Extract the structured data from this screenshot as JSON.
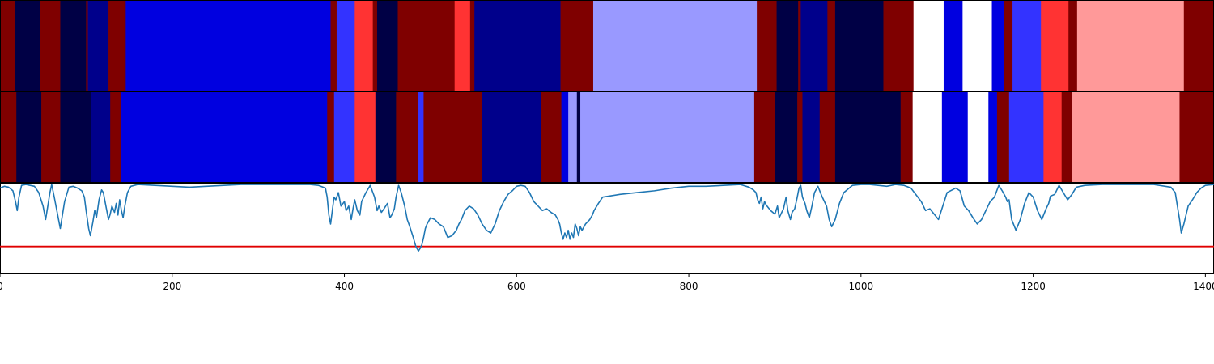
{
  "chart_data": {
    "type": "heatmap",
    "title": "",
    "xlabel": "",
    "ylabel": "",
    "xlim": [
      0,
      1410
    ],
    "xticks": [
      0,
      200,
      400,
      600,
      800,
      1000,
      1200,
      1400
    ],
    "xtick_labels": [
      "0",
      "200",
      "400",
      "600",
      "800",
      "1000",
      "1200",
      "1400"
    ],
    "grid": false,
    "colors": {
      "dark_red": "#7f0000",
      "red": "#ff3333",
      "pink": "#ff9999",
      "navy": "#000045",
      "dark_blue": "#00008b",
      "blue": "#0000e0",
      "mid_blue": "#3333ff",
      "light_blue": "#9999ff",
      "white": "#ffffff",
      "line": "#1f77b4",
      "threshold": "#e00000"
    },
    "rows": [
      {
        "segments": [
          {
            "start": 0,
            "end": 17,
            "color": "dark_red"
          },
          {
            "start": 17,
            "end": 47,
            "color": "navy"
          },
          {
            "start": 47,
            "end": 70,
            "color": "dark_red"
          },
          {
            "start": 70,
            "end": 100,
            "color": "navy"
          },
          {
            "start": 100,
            "end": 102,
            "color": "dark_red"
          },
          {
            "start": 102,
            "end": 126,
            "color": "dark_blue"
          },
          {
            "start": 126,
            "end": 146,
            "color": "dark_red"
          },
          {
            "start": 146,
            "end": 384,
            "color": "blue"
          },
          {
            "start": 384,
            "end": 391,
            "color": "dark_red"
          },
          {
            "start": 391,
            "end": 412,
            "color": "mid_blue"
          },
          {
            "start": 412,
            "end": 433,
            "color": "red"
          },
          {
            "start": 433,
            "end": 438,
            "color": "dark_red"
          },
          {
            "start": 438,
            "end": 462,
            "color": "navy"
          },
          {
            "start": 462,
            "end": 528,
            "color": "dark_red"
          },
          {
            "start": 528,
            "end": 546,
            "color": "red"
          },
          {
            "start": 546,
            "end": 551,
            "color": "dark_red"
          },
          {
            "start": 551,
            "end": 651,
            "color": "dark_blue"
          },
          {
            "start": 651,
            "end": 689,
            "color": "dark_red"
          },
          {
            "start": 689,
            "end": 879,
            "color": "light_blue"
          },
          {
            "start": 879,
            "end": 902,
            "color": "dark_red"
          },
          {
            "start": 902,
            "end": 927,
            "color": "navy"
          },
          {
            "start": 927,
            "end": 930,
            "color": "dark_red"
          },
          {
            "start": 930,
            "end": 961,
            "color": "dark_blue"
          },
          {
            "start": 961,
            "end": 970,
            "color": "dark_red"
          },
          {
            "start": 970,
            "end": 1026,
            "color": "navy"
          },
          {
            "start": 1026,
            "end": 1061,
            "color": "dark_red"
          },
          {
            "start": 1061,
            "end": 1096,
            "color": "white"
          },
          {
            "start": 1096,
            "end": 1118,
            "color": "blue"
          },
          {
            "start": 1118,
            "end": 1152,
            "color": "white"
          },
          {
            "start": 1152,
            "end": 1166,
            "color": "blue"
          },
          {
            "start": 1166,
            "end": 1176,
            "color": "dark_red"
          },
          {
            "start": 1176,
            "end": 1209,
            "color": "mid_blue"
          },
          {
            "start": 1209,
            "end": 1241,
            "color": "red"
          },
          {
            "start": 1241,
            "end": 1251,
            "color": "dark_red"
          },
          {
            "start": 1251,
            "end": 1375,
            "color": "pink"
          },
          {
            "start": 1375,
            "end": 1410,
            "color": "dark_red"
          }
        ]
      },
      {
        "segments": [
          {
            "start": 0,
            "end": 19,
            "color": "dark_red"
          },
          {
            "start": 19,
            "end": 48,
            "color": "navy"
          },
          {
            "start": 48,
            "end": 70,
            "color": "dark_red"
          },
          {
            "start": 70,
            "end": 106,
            "color": "navy"
          },
          {
            "start": 106,
            "end": 128,
            "color": "dark_blue"
          },
          {
            "start": 128,
            "end": 140,
            "color": "dark_red"
          },
          {
            "start": 140,
            "end": 380,
            "color": "blue"
          },
          {
            "start": 380,
            "end": 388,
            "color": "dark_red"
          },
          {
            "start": 388,
            "end": 412,
            "color": "mid_blue"
          },
          {
            "start": 412,
            "end": 436,
            "color": "red"
          },
          {
            "start": 436,
            "end": 460,
            "color": "navy"
          },
          {
            "start": 460,
            "end": 486,
            "color": "dark_red"
          },
          {
            "start": 486,
            "end": 492,
            "color": "mid_blue"
          },
          {
            "start": 492,
            "end": 526,
            "color": "dark_red"
          },
          {
            "start": 526,
            "end": 560,
            "color": "dark_red"
          },
          {
            "start": 560,
            "end": 628,
            "color": "dark_blue"
          },
          {
            "start": 628,
            "end": 652,
            "color": "dark_red"
          },
          {
            "start": 652,
            "end": 660,
            "color": "blue"
          },
          {
            "start": 660,
            "end": 670,
            "color": "light_blue"
          },
          {
            "start": 670,
            "end": 674,
            "color": "navy"
          },
          {
            "start": 674,
            "end": 876,
            "color": "light_blue"
          },
          {
            "start": 876,
            "end": 900,
            "color": "dark_red"
          },
          {
            "start": 900,
            "end": 926,
            "color": "navy"
          },
          {
            "start": 926,
            "end": 932,
            "color": "dark_red"
          },
          {
            "start": 932,
            "end": 952,
            "color": "dark_blue"
          },
          {
            "start": 952,
            "end": 970,
            "color": "dark_red"
          },
          {
            "start": 970,
            "end": 1046,
            "color": "navy"
          },
          {
            "start": 1046,
            "end": 1060,
            "color": "dark_red"
          },
          {
            "start": 1060,
            "end": 1094,
            "color": "white"
          },
          {
            "start": 1094,
            "end": 1124,
            "color": "blue"
          },
          {
            "start": 1124,
            "end": 1148,
            "color": "white"
          },
          {
            "start": 1148,
            "end": 1158,
            "color": "blue"
          },
          {
            "start": 1158,
            "end": 1172,
            "color": "dark_red"
          },
          {
            "start": 1172,
            "end": 1212,
            "color": "mid_blue"
          },
          {
            "start": 1212,
            "end": 1233,
            "color": "red"
          },
          {
            "start": 1233,
            "end": 1245,
            "color": "dark_red"
          },
          {
            "start": 1245,
            "end": 1370,
            "color": "pink"
          },
          {
            "start": 1370,
            "end": 1410,
            "color": "dark_red"
          }
        ]
      }
    ],
    "line_panel": {
      "ylim": [
        0,
        1
      ],
      "threshold": 0.3,
      "series": [
        {
          "x": [
            0,
            5,
            10,
            15,
            18,
            20,
            22,
            25,
            30,
            35,
            40,
            45,
            50,
            53,
            55,
            58,
            60,
            63,
            66,
            70,
            72,
            75,
            80,
            85,
            90,
            95,
            98,
            100,
            103,
            105,
            108,
            110,
            112,
            115,
            118,
            120,
            122,
            124,
            126,
            128,
            130,
            133,
            135,
            137,
            139,
            141,
            143,
            145,
            148,
            152,
            160,
            180,
            200,
            220,
            240,
            260,
            280,
            300,
            320,
            340,
            360,
            370,
            378,
            380,
            382,
            384,
            386,
            388,
            390,
            393,
            396,
            400,
            402,
            405,
            408,
            410,
            412,
            415,
            418,
            420,
            425,
            430,
            435,
            438,
            440,
            443,
            446,
            450,
            453,
            455,
            458,
            460,
            463,
            466,
            470,
            473,
            476,
            480,
            483,
            486,
            488,
            490,
            492,
            494,
            496,
            500,
            505,
            510,
            515,
            520,
            525,
            530,
            533,
            536,
            540,
            545,
            550,
            555,
            560,
            565,
            570,
            575,
            580,
            585,
            590,
            595,
            600,
            605,
            610,
            615,
            620,
            625,
            630,
            635,
            640,
            645,
            648,
            650,
            652,
            654,
            656,
            658,
            660,
            662,
            664,
            666,
            668,
            670,
            672,
            674,
            676,
            680,
            685,
            688,
            690,
            695,
            700,
            720,
            740,
            760,
            780,
            800,
            820,
            840,
            860,
            870,
            875,
            878,
            880,
            882,
            884,
            886,
            888,
            890,
            895,
            900,
            903,
            905,
            908,
            910,
            913,
            915,
            918,
            920,
            923,
            926,
            928,
            930,
            932,
            935,
            937,
            940,
            943,
            946,
            950,
            955,
            960,
            963,
            966,
            970,
            975,
            980,
            990,
            1000,
            1010,
            1020,
            1030,
            1040,
            1050,
            1058,
            1062,
            1066,
            1070,
            1075,
            1080,
            1090,
            1100,
            1110,
            1115,
            1120,
            1125,
            1130,
            1135,
            1140,
            1145,
            1150,
            1155,
            1160,
            1164,
            1168,
            1170,
            1172,
            1175,
            1180,
            1185,
            1190,
            1195,
            1200,
            1205,
            1210,
            1215,
            1218,
            1220,
            1225,
            1230,
            1235,
            1240,
            1245,
            1250,
            1260,
            1280,
            1300,
            1320,
            1340,
            1360,
            1365,
            1370,
            1372,
            1375,
            1380,
            1385,
            1390,
            1395,
            1400,
            1410
          ],
          "y": [
            0.95,
            0.97,
            0.96,
            0.92,
            0.8,
            0.7,
            0.85,
            0.98,
            0.99,
            0.98,
            0.97,
            0.9,
            0.75,
            0.6,
            0.72,
            0.9,
            0.99,
            0.85,
            0.7,
            0.5,
            0.62,
            0.8,
            0.96,
            0.97,
            0.95,
            0.92,
            0.85,
            0.7,
            0.5,
            0.42,
            0.58,
            0.7,
            0.62,
            0.82,
            0.93,
            0.9,
            0.8,
            0.7,
            0.6,
            0.66,
            0.75,
            0.68,
            0.78,
            0.65,
            0.82,
            0.7,
            0.62,
            0.75,
            0.9,
            0.97,
            0.99,
            0.98,
            0.97,
            0.96,
            0.97,
            0.98,
            0.99,
            0.99,
            0.99,
            0.99,
            0.99,
            0.98,
            0.95,
            0.85,
            0.65,
            0.55,
            0.7,
            0.85,
            0.82,
            0.9,
            0.75,
            0.8,
            0.7,
            0.75,
            0.6,
            0.72,
            0.82,
            0.7,
            0.65,
            0.8,
            0.9,
            0.98,
            0.85,
            0.7,
            0.75,
            0.68,
            0.72,
            0.78,
            0.62,
            0.65,
            0.72,
            0.85,
            0.98,
            0.9,
            0.75,
            0.6,
            0.52,
            0.4,
            0.3,
            0.25,
            0.28,
            0.32,
            0.4,
            0.5,
            0.55,
            0.62,
            0.6,
            0.55,
            0.52,
            0.4,
            0.42,
            0.48,
            0.55,
            0.6,
            0.7,
            0.75,
            0.72,
            0.65,
            0.55,
            0.48,
            0.45,
            0.55,
            0.7,
            0.8,
            0.88,
            0.92,
            0.97,
            0.98,
            0.97,
            0.9,
            0.8,
            0.75,
            0.7,
            0.72,
            0.68,
            0.65,
            0.6,
            0.55,
            0.45,
            0.38,
            0.45,
            0.4,
            0.48,
            0.38,
            0.45,
            0.4,
            0.55,
            0.5,
            0.42,
            0.52,
            0.48,
            0.55,
            0.6,
            0.65,
            0.7,
            0.78,
            0.85,
            0.88,
            0.9,
            0.92,
            0.95,
            0.97,
            0.97,
            0.98,
            0.99,
            0.96,
            0.93,
            0.9,
            0.82,
            0.78,
            0.85,
            0.72,
            0.8,
            0.76,
            0.7,
            0.66,
            0.75,
            0.62,
            0.68,
            0.72,
            0.85,
            0.7,
            0.6,
            0.68,
            0.72,
            0.85,
            0.95,
            0.98,
            0.85,
            0.78,
            0.7,
            0.62,
            0.75,
            0.9,
            0.97,
            0.85,
            0.75,
            0.6,
            0.52,
            0.6,
            0.78,
            0.9,
            0.98,
            0.99,
            0.99,
            0.98,
            0.97,
            0.99,
            0.98,
            0.95,
            0.9,
            0.85,
            0.8,
            0.7,
            0.72,
            0.6,
            0.9,
            0.95,
            0.92,
            0.75,
            0.7,
            0.62,
            0.55,
            0.6,
            0.7,
            0.8,
            0.85,
            0.98,
            0.92,
            0.85,
            0.8,
            0.82,
            0.6,
            0.48,
            0.6,
            0.78,
            0.9,
            0.85,
            0.7,
            0.6,
            0.72,
            0.78,
            0.86,
            0.88,
            0.98,
            0.9,
            0.82,
            0.88,
            0.96,
            0.98,
            0.99,
            0.99,
            0.99,
            0.99,
            0.96,
            0.9,
            0.6,
            0.45,
            0.55,
            0.75,
            0.82,
            0.9,
            0.95,
            0.98,
            0.99
          ]
        }
      ]
    }
  }
}
